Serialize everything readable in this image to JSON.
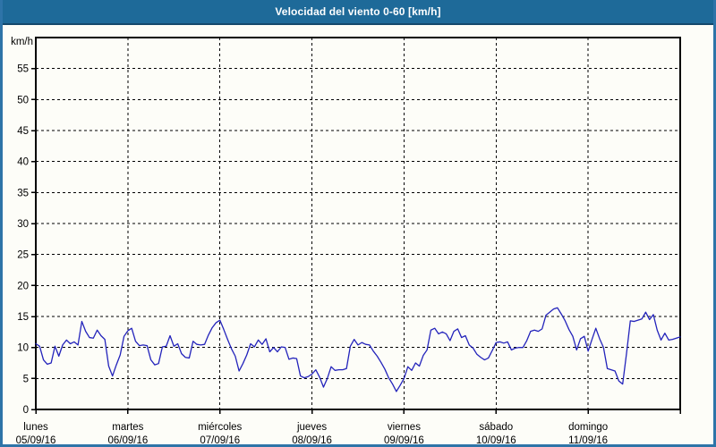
{
  "window": {
    "title": "Velocidad del viento 0-60 [km/h]"
  },
  "colors": {
    "titlebar_bg": "#1e6a99",
    "titlebar_border": "#14486b",
    "titlebar_text": "#ffffff",
    "frame_border": "#2e74a8",
    "page_bg": "#fdfdf8",
    "grid": "#000000",
    "axis": "#000000",
    "series": "#2323bb",
    "label_text": "#000000"
  },
  "chart_data": {
    "type": "line",
    "title": "Velocidad del viento 0-60 [km/h]",
    "ylabel": "km/h",
    "ylim": [
      0,
      60
    ],
    "yticks": [
      0,
      5,
      10,
      15,
      20,
      25,
      30,
      35,
      40,
      45,
      50,
      55
    ],
    "grid": "dashed",
    "legend": "none",
    "x_days": [
      {
        "name": "lunes",
        "date": "05/09/16"
      },
      {
        "name": "martes",
        "date": "06/09/16"
      },
      {
        "name": "miércoles",
        "date": "07/09/16"
      },
      {
        "name": "jueves",
        "date": "08/09/16"
      },
      {
        "name": "viernes",
        "date": "09/09/16"
      },
      {
        "name": "sábado",
        "date": "10/09/16"
      },
      {
        "name": "domingo",
        "date": "11/09/16"
      }
    ],
    "points_per_day": 24,
    "series_name": "Velocidad del viento",
    "values": [
      10.6,
      10.2,
      8.0,
      7.3,
      7.5,
      10.2,
      8.6,
      10.4,
      11.2,
      10.6,
      10.9,
      10.4,
      14.2,
      12.6,
      11.6,
      11.5,
      12.8,
      11.9,
      11.3,
      7.0,
      5.4,
      7.2,
      8.8,
      11.8,
      12.7,
      13.1,
      11.0,
      10.3,
      10.4,
      10.3,
      8.0,
      7.2,
      7.4,
      10.1,
      10.2,
      11.9,
      10.2,
      10.6,
      9.0,
      8.4,
      8.3,
      11.0,
      10.5,
      10.4,
      10.5,
      12.0,
      13.2,
      14.0,
      14.4,
      12.9,
      11.3,
      9.8,
      8.6,
      6.2,
      7.4,
      8.8,
      10.6,
      10.1,
      11.2,
      10.5,
      11.4,
      9.3,
      10.0,
      9.3,
      10.1,
      10.0,
      8.1,
      8.3,
      8.2,
      5.4,
      5.1,
      5.3,
      5.7,
      6.4,
      5.2,
      3.6,
      5.0,
      6.9,
      6.3,
      6.4,
      6.4,
      6.6,
      10.2,
      11.3,
      10.4,
      10.8,
      10.5,
      10.4,
      9.4,
      8.6,
      7.6,
      6.5,
      5.1,
      4.1,
      2.9,
      3.9,
      5.0,
      6.9,
      6.3,
      7.5,
      7.0,
      8.7,
      9.6,
      12.8,
      13.1,
      12.2,
      12.5,
      12.2,
      11.1,
      12.6,
      13.0,
      11.6,
      11.9,
      10.4,
      9.9,
      8.9,
      8.4,
      8.0,
      8.3,
      9.5,
      10.8,
      10.9,
      10.7,
      10.9,
      9.6,
      9.9,
      10.0,
      10.0,
      11.1,
      12.6,
      12.8,
      12.6,
      13.0,
      15.2,
      15.7,
      16.2,
      16.4,
      15.4,
      14.3,
      12.9,
      11.8,
      9.6,
      11.4,
      11.8,
      9.4,
      11.3,
      13.1,
      11.4,
      10.0,
      6.6,
      6.4,
      6.2,
      4.6,
      4.1,
      9.0,
      14.3,
      14.2,
      14.4,
      14.6,
      15.7,
      14.5,
      15.3,
      12.8,
      11.2,
      12.3,
      11.2,
      11.3,
      11.5,
      11.7
    ]
  }
}
